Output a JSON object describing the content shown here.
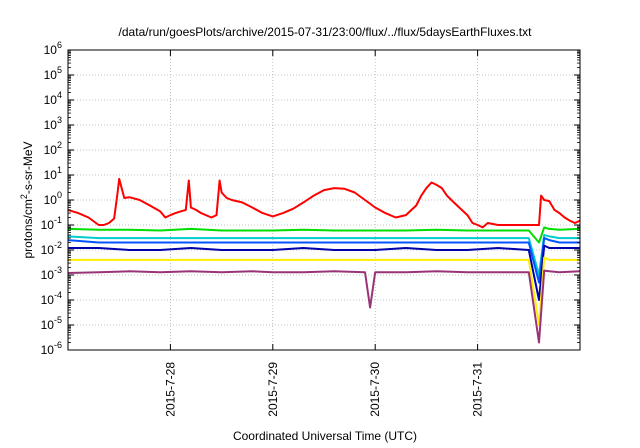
{
  "chart_data": {
    "type": "line",
    "title": "/data/run/goesPlots/archive/2015-07-31/23:00/flux/../flux/5daysEarthFluxes.txt",
    "xlabel": "Coordinated Universal Time (UTC)",
    "ylabel": "protons/cm^2-s-sr-MeV",
    "ylabel_parts": {
      "base": "protons/cm",
      "sup": "2",
      "rest": "-s-sr-MeV"
    },
    "yscale": "log",
    "ylim": [
      1e-06,
      1000000.0
    ],
    "xlim": [
      27.0,
      32.0
    ],
    "grid": true,
    "x_tick_labels": [
      "2015-7-28",
      "2015-7-29",
      "2015-7-30",
      "2015-7-31"
    ],
    "x_tick_values": [
      28,
      29,
      30,
      31
    ],
    "y_tick_labels": [
      {
        "base": "10",
        "exp": "-6"
      },
      {
        "base": "10",
        "exp": "-5"
      },
      {
        "base": "10",
        "exp": "-4"
      },
      {
        "base": "10",
        "exp": "-3"
      },
      {
        "base": "10",
        "exp": "-2"
      },
      {
        "base": "10",
        "exp": "-1"
      },
      {
        "base": "10",
        "exp": "0"
      },
      {
        "base": "10",
        "exp": "1"
      },
      {
        "base": "10",
        "exp": "2"
      },
      {
        "base": "10",
        "exp": "3"
      },
      {
        "base": "10",
        "exp": "4"
      },
      {
        "base": "10",
        "exp": "5"
      },
      {
        "base": "10",
        "exp": "6"
      }
    ],
    "y_tick_exponents": [
      -6,
      -5,
      -4,
      -3,
      -2,
      -1,
      0,
      1,
      2,
      3,
      4,
      5,
      6
    ],
    "series": [
      {
        "color": "#ff0000",
        "x": [
          27.0,
          27.1,
          27.2,
          27.3,
          27.35,
          27.4,
          27.45,
          27.48,
          27.5,
          27.55,
          27.6,
          27.7,
          27.8,
          27.9,
          27.95,
          28.0,
          28.05,
          28.1,
          28.15,
          28.18,
          28.2,
          28.25,
          28.3,
          28.4,
          28.45,
          28.48,
          28.5,
          28.55,
          28.6,
          28.7,
          28.8,
          28.9,
          29.0,
          29.1,
          29.2,
          29.3,
          29.4,
          29.5,
          29.6,
          29.7,
          29.8,
          29.9,
          30.0,
          30.1,
          30.2,
          30.3,
          30.4,
          30.45,
          30.5,
          30.55,
          30.6,
          30.65,
          30.7,
          30.8,
          30.9,
          30.95,
          31.0,
          31.05,
          31.1,
          31.2,
          31.3,
          31.4,
          31.5,
          31.55,
          31.6,
          31.62,
          31.65,
          31.7,
          31.75,
          31.8,
          31.85,
          31.9,
          31.95,
          32.0
        ],
        "y": [
          0.4,
          0.3,
          0.2,
          0.1,
          0.1,
          0.12,
          0.18,
          1.5,
          7.0,
          1.2,
          1.3,
          1.0,
          0.6,
          0.35,
          0.2,
          0.25,
          0.3,
          0.35,
          0.4,
          6.0,
          0.5,
          0.4,
          0.3,
          0.2,
          0.25,
          6.0,
          2.0,
          1.2,
          1.0,
          0.8,
          0.5,
          0.3,
          0.22,
          0.3,
          0.45,
          0.8,
          1.5,
          2.5,
          3.0,
          2.8,
          2.0,
          1.0,
          0.5,
          0.3,
          0.2,
          0.25,
          0.6,
          1.5,
          3.0,
          5.0,
          4.0,
          3.0,
          1.5,
          0.6,
          0.25,
          0.12,
          0.1,
          0.08,
          0.12,
          0.1,
          0.1,
          0.1,
          0.1,
          0.1,
          0.1,
          1.5,
          1.0,
          0.9,
          0.4,
          0.3,
          0.2,
          0.15,
          0.12,
          0.15
        ]
      },
      {
        "color": "#00dd00",
        "x": [
          27.0,
          27.3,
          27.6,
          27.9,
          28.2,
          28.5,
          28.8,
          29.0,
          29.3,
          29.6,
          29.9,
          29.95,
          30.0,
          30.3,
          30.6,
          30.9,
          31.2,
          31.5,
          31.6,
          31.65,
          31.7,
          31.8,
          32.0
        ],
        "y": [
          0.07,
          0.065,
          0.065,
          0.06,
          0.07,
          0.06,
          0.06,
          0.06,
          0.065,
          0.06,
          0.06,
          0.06,
          0.06,
          0.06,
          0.065,
          0.06,
          0.06,
          0.06,
          0.02,
          0.08,
          0.07,
          0.065,
          0.07
        ]
      },
      {
        "color": "#00cccc",
        "x": [
          27.0,
          27.3,
          27.6,
          27.9,
          28.2,
          28.5,
          28.8,
          29.0,
          29.3,
          29.6,
          29.9,
          30.0,
          30.3,
          30.6,
          30.9,
          31.2,
          31.5,
          31.6,
          31.65,
          31.7,
          31.8,
          32.0
        ],
        "y": [
          0.035,
          0.03,
          0.03,
          0.03,
          0.03,
          0.03,
          0.03,
          0.03,
          0.03,
          0.03,
          0.03,
          0.03,
          0.03,
          0.03,
          0.03,
          0.03,
          0.03,
          0.001,
          0.04,
          0.035,
          0.03,
          0.03
        ]
      },
      {
        "color": "#0055ff",
        "x": [
          27.0,
          27.3,
          27.6,
          27.9,
          28.2,
          28.5,
          28.8,
          29.0,
          29.3,
          29.6,
          29.9,
          30.0,
          30.3,
          30.6,
          30.9,
          31.2,
          31.5,
          31.6,
          31.65,
          31.7,
          31.8,
          32.0
        ],
        "y": [
          0.025,
          0.02,
          0.02,
          0.02,
          0.02,
          0.02,
          0.02,
          0.02,
          0.02,
          0.02,
          0.02,
          0.02,
          0.02,
          0.02,
          0.02,
          0.02,
          0.02,
          0.0005,
          0.03,
          0.025,
          0.02,
          0.02
        ]
      },
      {
        "color": "#0000aa",
        "x": [
          27.0,
          27.3,
          27.6,
          27.9,
          28.2,
          28.5,
          28.8,
          29.0,
          29.3,
          29.6,
          29.9,
          30.0,
          30.3,
          30.6,
          30.9,
          31.2,
          31.5,
          31.6,
          31.65,
          31.7,
          31.8,
          32.0
        ],
        "y": [
          0.012,
          0.012,
          0.01,
          0.01,
          0.012,
          0.01,
          0.01,
          0.01,
          0.012,
          0.01,
          0.01,
          0.01,
          0.012,
          0.01,
          0.01,
          0.012,
          0.01,
          0.0001,
          0.015,
          0.012,
          0.012,
          0.012
        ]
      },
      {
        "color": "#ffee00",
        "x": [
          27.0,
          27.3,
          27.6,
          27.9,
          28.2,
          28.5,
          28.8,
          29.0,
          29.3,
          29.6,
          29.9,
          30.0,
          30.3,
          30.6,
          30.9,
          31.2,
          31.5,
          31.6,
          31.65,
          31.7,
          31.8,
          32.0
        ],
        "y": [
          0.004,
          0.004,
          0.004,
          0.004,
          0.004,
          0.004,
          0.004,
          0.004,
          0.004,
          0.004,
          0.004,
          0.004,
          0.004,
          0.004,
          0.004,
          0.004,
          0.004,
          1e-05,
          0.005,
          0.004,
          0.004,
          0.004
        ]
      },
      {
        "color": "#993377",
        "x": [
          27.0,
          27.3,
          27.6,
          27.9,
          28.2,
          28.5,
          28.8,
          29.0,
          29.3,
          29.6,
          29.9,
          29.95,
          30.0,
          30.3,
          30.6,
          30.9,
          31.2,
          31.5,
          31.6,
          31.65,
          31.7,
          31.8,
          32.0
        ],
        "y": [
          0.0012,
          0.0013,
          0.0014,
          0.0013,
          0.0014,
          0.0013,
          0.0014,
          0.0013,
          0.0013,
          0.0014,
          0.0013,
          5e-05,
          0.0013,
          0.0013,
          0.0014,
          0.0013,
          0.0013,
          0.0013,
          2e-06,
          0.0015,
          0.0014,
          0.0013,
          0.0014
        ]
      }
    ]
  }
}
